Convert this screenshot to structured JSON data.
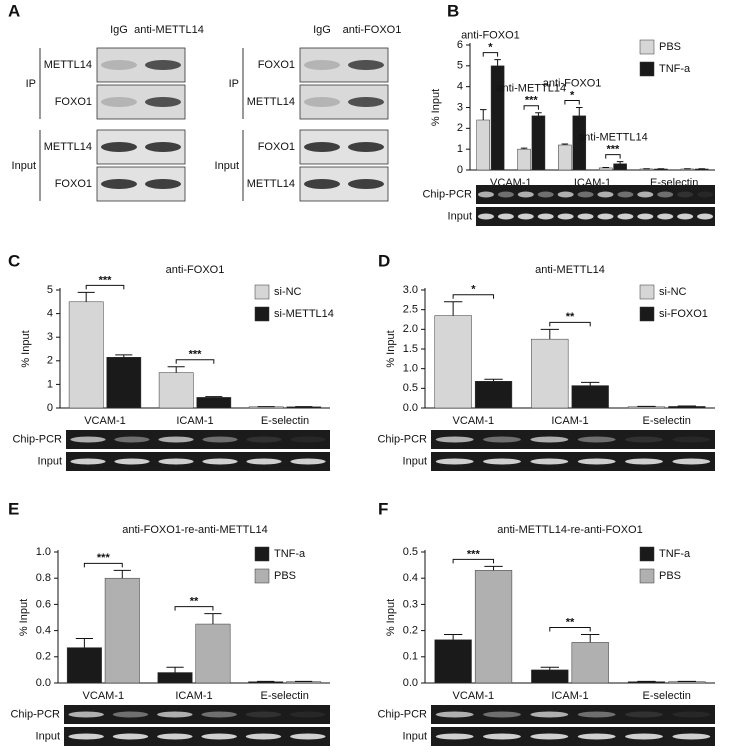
{
  "blot_panel": {
    "panel": "A",
    "blots": [
      {
        "columns": [
          "IgG",
          "anti-METTL14"
        ],
        "groups": [
          {
            "label": "IP",
            "rows": [
              "METTL14",
              "FOXO1"
            ]
          },
          {
            "label": "Input",
            "rows": [
              "METTL14",
              "FOXO1"
            ]
          }
        ]
      },
      {
        "columns": [
          "IgG",
          "anti-FOXO1"
        ],
        "groups": [
          {
            "label": "IP",
            "rows": [
              "FOXO1",
              "METTL14"
            ]
          },
          {
            "label": "Input",
            "rows": [
              "FOXO1",
              "METTL14"
            ]
          }
        ]
      }
    ]
  },
  "chart_data": [
    {
      "panel": "B",
      "type": "bar",
      "y_label": "% Input",
      "categories": [
        "VCAM-1",
        null,
        "ICAM-1",
        null,
        "E-selectin",
        null
      ],
      "group_labels": [
        "anti-FOXO1",
        "anti-METTL14",
        "anti-FOXO1",
        "anti-METTL14",
        null,
        null
      ],
      "annotations": [
        "*",
        "***",
        "*",
        "***",
        null,
        null
      ],
      "series": [
        {
          "name": "PBS",
          "color": "#d6d6d6",
          "values": [
            2.4,
            1.0,
            1.2,
            0.1,
            0.05,
            0.05
          ],
          "errors": [
            0.5,
            0.05,
            0.05,
            0.02,
            0.01,
            0.01
          ]
        },
        {
          "name": "TNF-a",
          "color": "#1a1a1a",
          "values": [
            5.0,
            2.6,
            2.6,
            0.3,
            0.05,
            0.05
          ],
          "errors": [
            0.3,
            0.15,
            0.4,
            0.1,
            0.01,
            0.01
          ]
        }
      ],
      "ylim": [
        0,
        6
      ],
      "yticks": [
        0,
        1,
        2,
        3,
        4,
        5,
        6
      ],
      "legend": "upper right",
      "gel_rows": [
        "Chip-PCR",
        "Input"
      ]
    },
    {
      "panel": "C",
      "type": "bar",
      "title": "anti-FOXO1",
      "y_label": "% Input",
      "categories": [
        "VCAM-1",
        "ICAM-1",
        "E-selectin"
      ],
      "annotations": [
        "***",
        "***",
        null
      ],
      "series": [
        {
          "name": "si-NC",
          "color": "#d6d6d6",
          "values": [
            4.5,
            1.5,
            0.05
          ],
          "errors": [
            0.4,
            0.25,
            0.01
          ]
        },
        {
          "name": "si-METTL14",
          "color": "#1a1a1a",
          "values": [
            2.15,
            0.45,
            0.05
          ],
          "errors": [
            0.1,
            0.03,
            0.01
          ]
        }
      ],
      "ylim": [
        0,
        5
      ],
      "yticks": [
        0,
        1,
        2,
        3,
        4,
        5
      ],
      "legend": "upper right",
      "gel_rows": [
        "Chip-PCR",
        "Input"
      ]
    },
    {
      "panel": "D",
      "type": "bar",
      "title": "anti-METTL14",
      "y_label": "% Input",
      "categories": [
        "VCAM-1",
        "ICAM-1",
        "E-selectin"
      ],
      "annotations": [
        "*",
        "**",
        null
      ],
      "series": [
        {
          "name": "si-NC",
          "color": "#d6d6d6",
          "values": [
            2.35,
            1.75,
            0.03
          ],
          "errors": [
            0.35,
            0.25,
            0.01
          ]
        },
        {
          "name": "si-FOXO1",
          "color": "#1a1a1a",
          "values": [
            0.68,
            0.57,
            0.04
          ],
          "errors": [
            0.05,
            0.08,
            0.01
          ]
        }
      ],
      "ylim": [
        0,
        3
      ],
      "yticks": [
        {
          "value": 0,
          "label": "0.0"
        },
        {
          "value": 0.5,
          "label": "0.5"
        },
        {
          "value": 1,
          "label": "1.0"
        },
        {
          "value": 1.5,
          "label": "1.5"
        },
        {
          "value": 2,
          "label": "2.0"
        },
        {
          "value": 2.5,
          "label": "2.5"
        },
        {
          "value": 3,
          "label": "3.0"
        }
      ],
      "legend": "upper right",
      "gel_rows": [
        "Chip-PCR",
        "Input"
      ]
    },
    {
      "panel": "E",
      "type": "bar",
      "title": "anti-FOXO1-re-anti-METTL14",
      "y_label": "% Input",
      "categories": [
        "VCAM-1",
        "ICAM-1",
        "E-selectin"
      ],
      "annotations": [
        "***",
        "**",
        null
      ],
      "series": [
        {
          "name": "TNF-a",
          "color": "#1a1a1a",
          "values": [
            0.27,
            0.08,
            0.01
          ],
          "errors": [
            0.07,
            0.04,
            0.002
          ]
        },
        {
          "name": "PBS",
          "color": "#b0b0b0",
          "values": [
            0.8,
            0.45,
            0.01
          ],
          "errors": [
            0.06,
            0.08,
            0.002
          ]
        }
      ],
      "ylim": [
        0,
        1
      ],
      "yticks": [
        {
          "value": 0,
          "label": "0.0"
        },
        {
          "value": 0.2,
          "label": "0.2"
        },
        {
          "value": 0.4,
          "label": "0.4"
        },
        {
          "value": 0.6,
          "label": "0.6"
        },
        {
          "value": 0.8,
          "label": "0.8"
        },
        {
          "value": 1,
          "label": "1.0"
        }
      ],
      "legend": "upper right",
      "gel_rows": [
        "Chip-PCR",
        "Input"
      ]
    },
    {
      "panel": "F",
      "type": "bar",
      "title": "anti-METTL14-re-anti-FOXO1",
      "y_label": "% Input",
      "categories": [
        "VCAM-1",
        "ICAM-1",
        "E-selectin"
      ],
      "annotations": [
        "***",
        "**",
        null
      ],
      "series": [
        {
          "name": "TNF-a",
          "color": "#1a1a1a",
          "values": [
            0.165,
            0.05,
            0.005
          ],
          "errors": [
            0.02,
            0.01,
            0.001
          ]
        },
        {
          "name": "PBS",
          "color": "#b0b0b0",
          "values": [
            0.43,
            0.155,
            0.005
          ],
          "errors": [
            0.015,
            0.03,
            0.001
          ]
        }
      ],
      "ylim": [
        0,
        0.5
      ],
      "yticks": [
        {
          "value": 0,
          "label": "0.0"
        },
        {
          "value": 0.1,
          "label": "0.1"
        },
        {
          "value": 0.2,
          "label": "0.2"
        },
        {
          "value": 0.3,
          "label": "0.3"
        },
        {
          "value": 0.4,
          "label": "0.4"
        },
        {
          "value": 0.5,
          "label": "0.5"
        }
      ],
      "legend": "upper right",
      "gel_rows": [
        "Chip-PCR",
        "Input"
      ]
    }
  ]
}
